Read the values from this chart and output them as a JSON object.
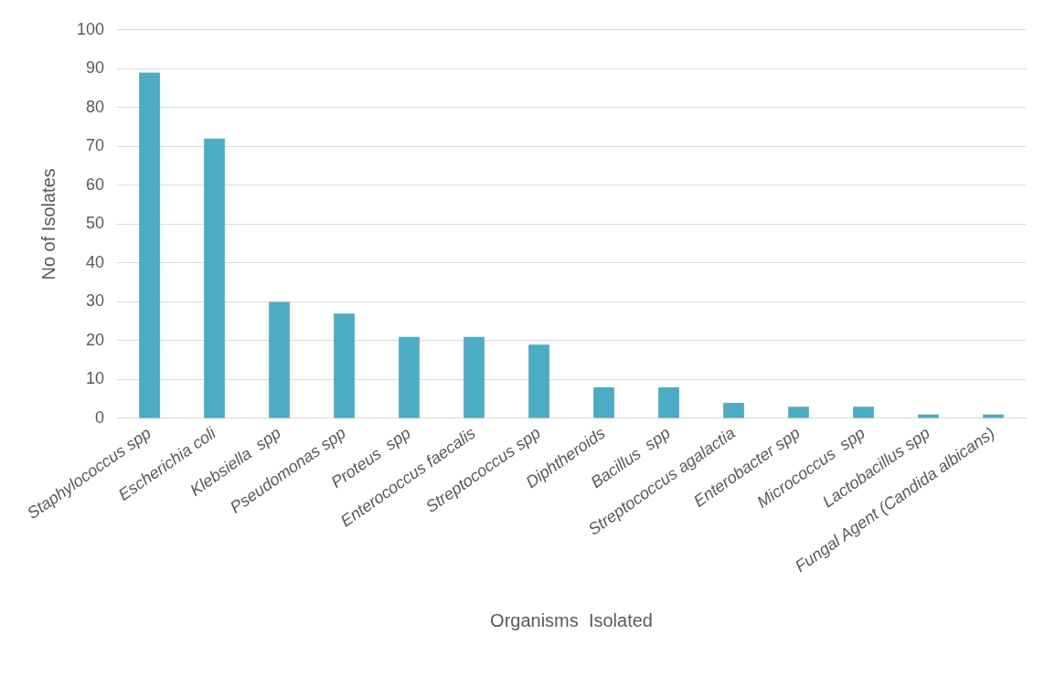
{
  "chart_data": {
    "type": "bar",
    "xlabel": "Organisms  Isolated",
    "ylabel": "No of Isolates",
    "categories": [
      "Staphylococcus spp",
      "Escherichia coli",
      "Klebsiella  spp",
      "Pseudomonas spp",
      "Proteus  spp",
      "Enterococcus faecalis",
      "Streptococcus spp",
      "Diphtheroids",
      "Bacillus  spp",
      "Streptococcus agalactia",
      "Enterobacter spp",
      "Micrococcus  spp",
      "Lactobacillus spp",
      "Fungal Agent (Candida albicans)"
    ],
    "values": [
      89,
      72,
      30,
      27,
      21,
      21,
      19,
      8,
      8,
      4,
      3,
      3,
      1,
      1
    ],
    "color": "#4bacc6",
    "ylim": [
      0,
      100
    ],
    "yticks": [
      0,
      10,
      20,
      30,
      40,
      50,
      60,
      70,
      80,
      90,
      100
    ],
    "grid": "y",
    "legend": false
  }
}
